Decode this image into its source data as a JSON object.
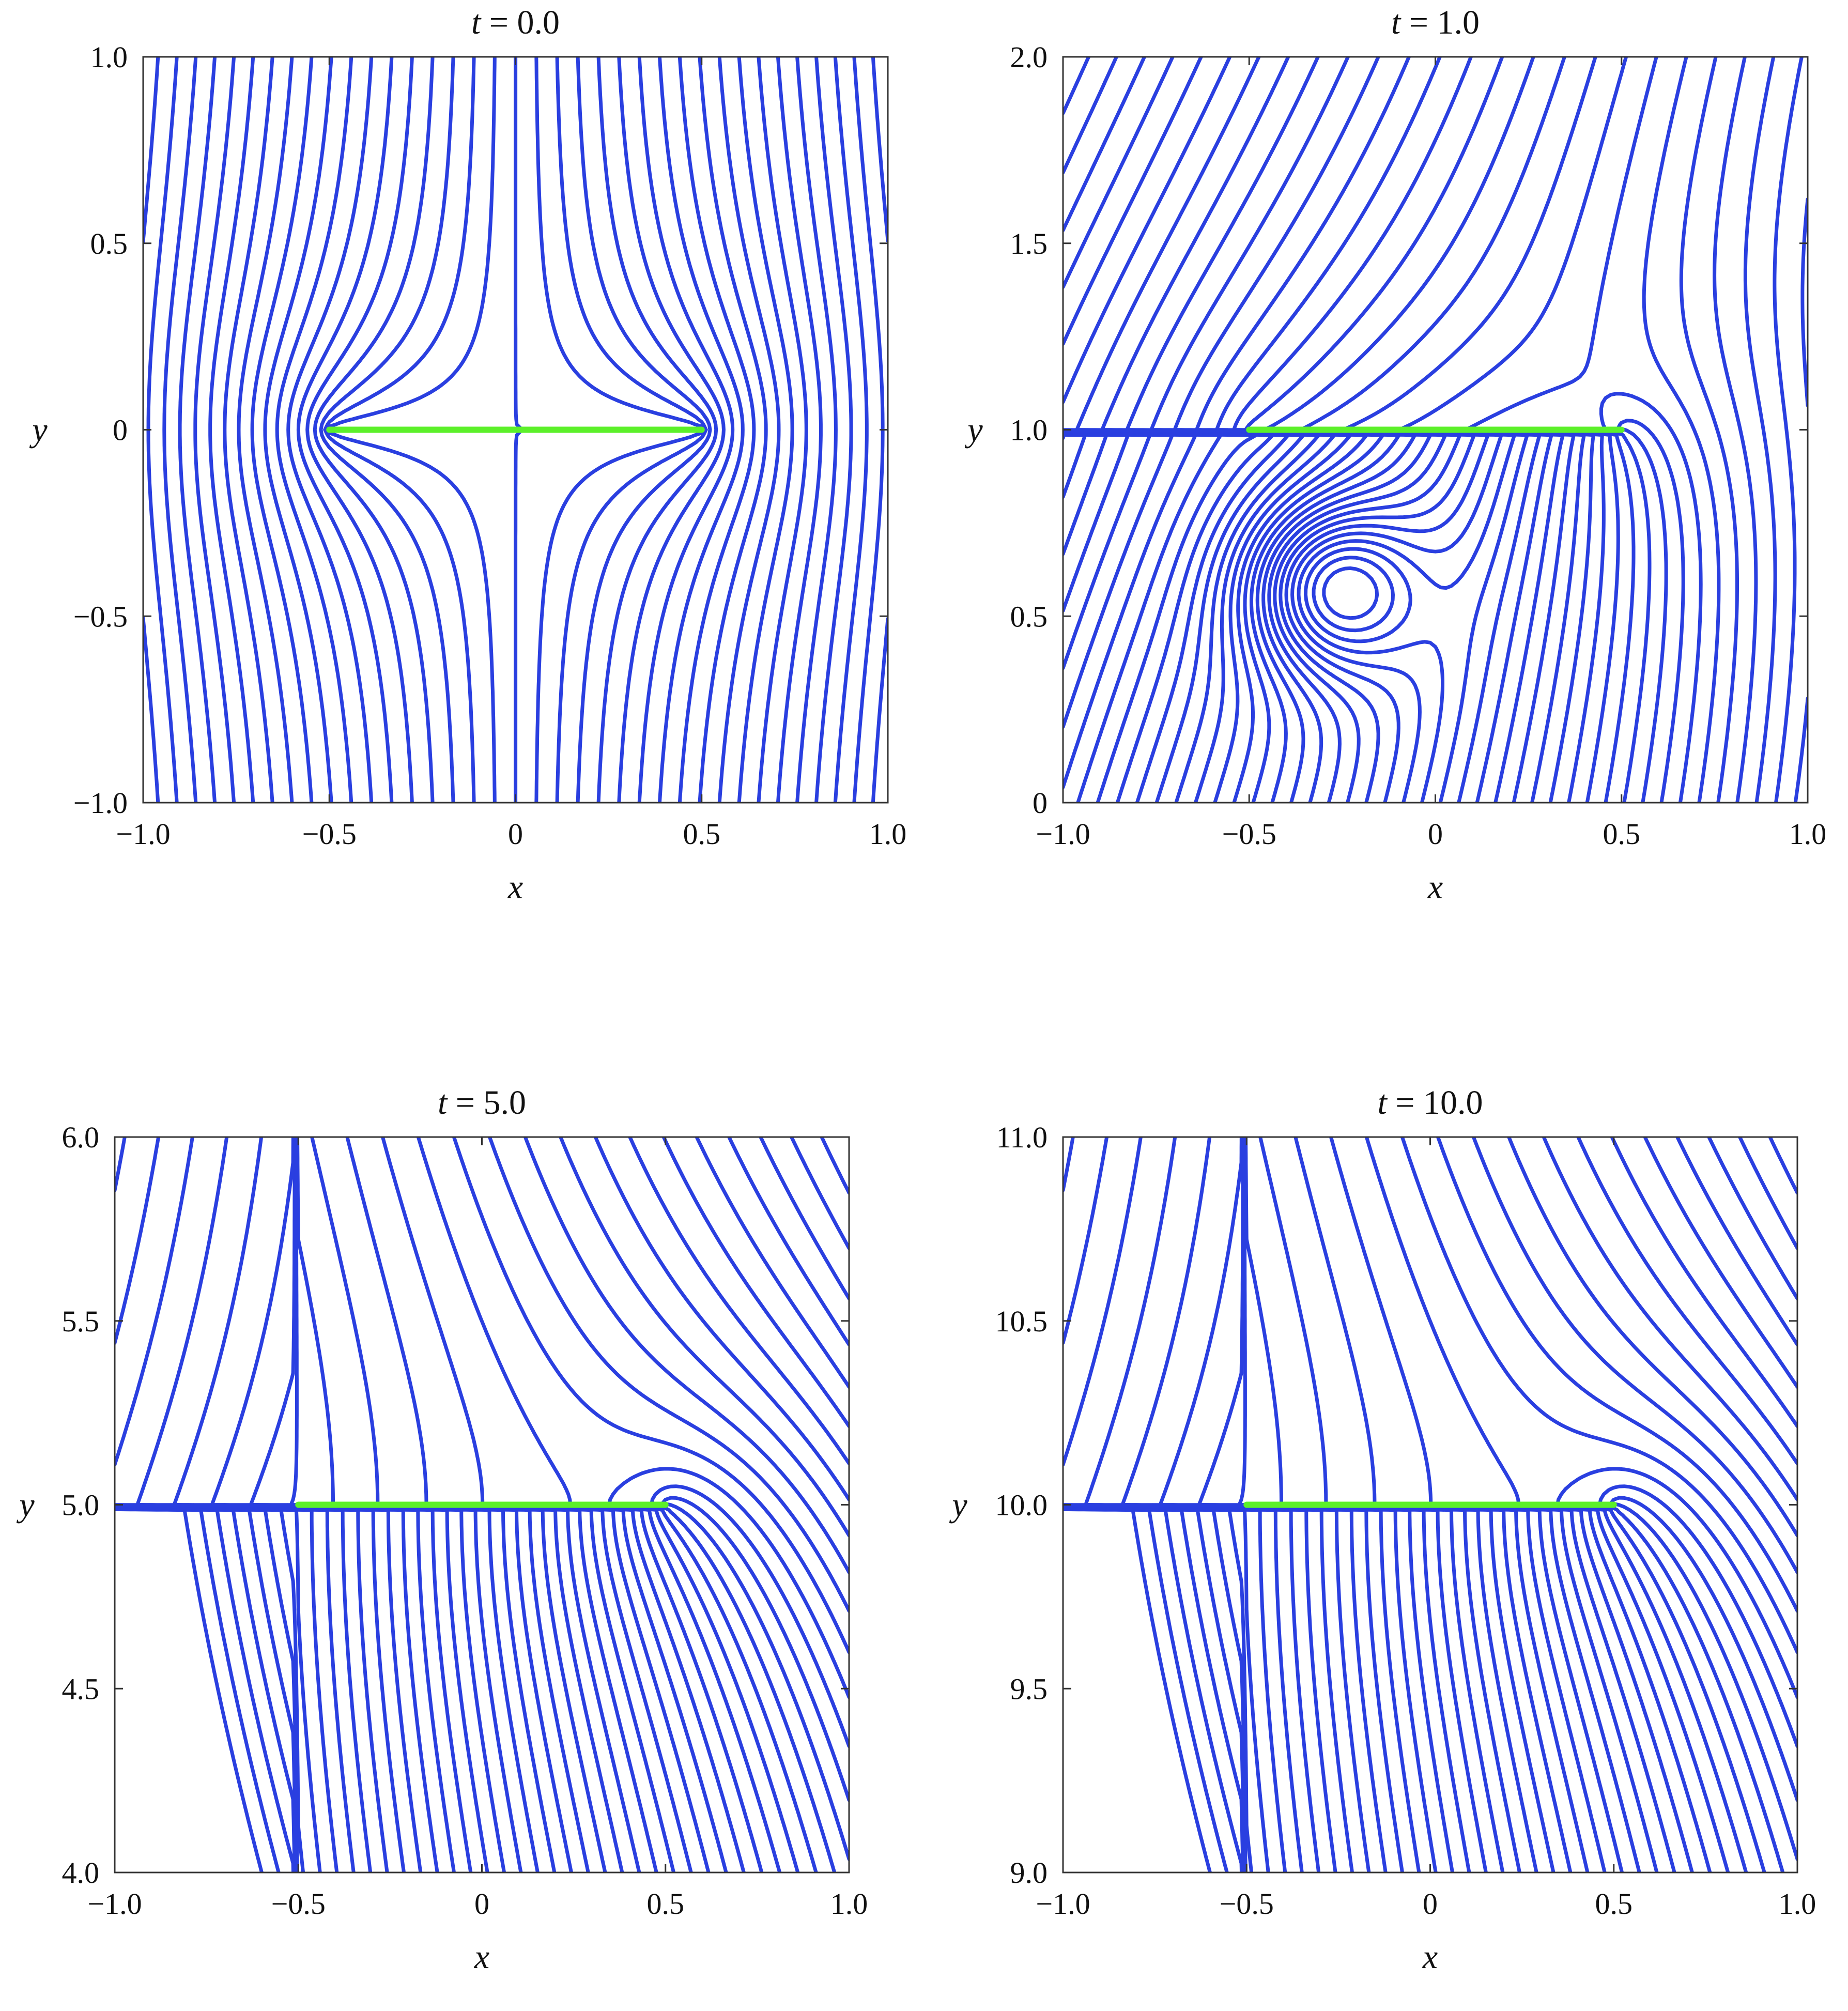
{
  "chart_data": [
    {
      "type": "line",
      "title_var": "t",
      "title_value": "0.0",
      "xlabel": "x",
      "ylabel": "y",
      "xlim": [
        -1.0,
        1.0
      ],
      "ylim": [
        -1.0,
        1.0
      ],
      "x_ticks": [
        -1.0,
        -0.5,
        0,
        0.5,
        1.0
      ],
      "x_tick_labels": [
        "−1.0",
        "−0.5",
        "0",
        "0.5",
        "1.0"
      ],
      "y_ticks": [
        -1.0,
        -0.5,
        0,
        0.5,
        1.0
      ],
      "y_tick_labels": [
        "−1.0",
        "−0.5",
        "0",
        "0.5",
        "1.0"
      ],
      "grid": false,
      "plate": {
        "x0": -0.5,
        "x1": 0.5,
        "y": 0.0
      },
      "streamline_style": "symmetric"
    },
    {
      "type": "line",
      "title_var": "t",
      "title_value": "1.0",
      "xlabel": "x",
      "ylabel": "y",
      "xlim": [
        -1.0,
        1.0
      ],
      "ylim": [
        0,
        2.0
      ],
      "x_ticks": [
        -1.0,
        -0.5,
        0,
        0.5,
        1.0
      ],
      "x_tick_labels": [
        "−1.0",
        "−0.5",
        "0",
        "0.5",
        "1.0"
      ],
      "y_ticks": [
        0,
        0.5,
        1.0,
        1.5,
        2.0
      ],
      "y_tick_labels": [
        "0",
        "0.5",
        "1.0",
        "1.5",
        "2.0"
      ],
      "grid": false,
      "plate": {
        "x0": -0.5,
        "x1": 0.5,
        "y": 1.0
      },
      "streamline_style": "transition"
    },
    {
      "type": "line",
      "title_var": "t",
      "title_value": "5.0",
      "xlabel": "x",
      "ylabel": "y",
      "xlim": [
        -1.0,
        1.0
      ],
      "ylim": [
        4.0,
        6.0
      ],
      "x_ticks": [
        -1.0,
        -0.5,
        0,
        0.5,
        1.0
      ],
      "x_tick_labels": [
        "−1.0",
        "−0.5",
        "0",
        "0.5",
        "1.0"
      ],
      "y_ticks": [
        4.0,
        4.5,
        5.0,
        5.5,
        6.0
      ],
      "y_tick_labels": [
        "4.0",
        "4.5",
        "5.0",
        "5.5",
        "6.0"
      ],
      "grid": false,
      "plate": {
        "x0": -0.5,
        "x1": 0.5,
        "y": 5.0
      },
      "streamline_style": "kutta"
    },
    {
      "type": "line",
      "title_var": "t",
      "title_value": "10.0",
      "xlabel": "x",
      "ylabel": "y",
      "xlim": [
        -1.0,
        1.0
      ],
      "ylim": [
        9.0,
        11.0
      ],
      "x_ticks": [
        -1.0,
        -0.5,
        0,
        0.5,
        1.0
      ],
      "x_tick_labels": [
        "−1.0",
        "−0.5",
        "0",
        "0.5",
        "1.0"
      ],
      "y_ticks": [
        9.0,
        9.5,
        10.0,
        10.5,
        11.0
      ],
      "y_tick_labels": [
        "9.0",
        "9.5",
        "10.0",
        "10.5",
        "11.0"
      ],
      "grid": false,
      "plate": {
        "x0": -0.5,
        "x1": 0.5,
        "y": 10.0
      },
      "streamline_style": "kutta"
    }
  ],
  "colors": {
    "streamline": "#2a3fe0",
    "plate": "#5cf02a",
    "axes": "#333333"
  }
}
